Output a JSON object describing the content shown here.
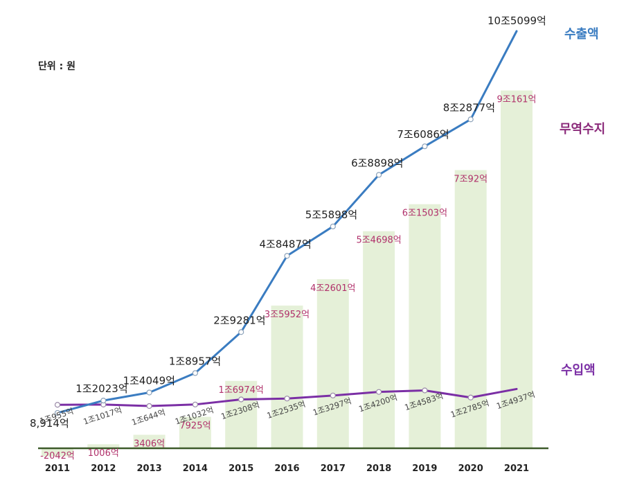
{
  "chart_data": {
    "type": "bar+line",
    "unit_label": "단위 : 원",
    "categories": [
      "2011",
      "2012",
      "2013",
      "2014",
      "2015",
      "2016",
      "2017",
      "2018",
      "2019",
      "2020",
      "2021"
    ],
    "series": [
      {
        "name": "수출액",
        "kind": "line",
        "color": "#3a7cc1",
        "values": [
          8914,
          12023,
          14049,
          18957,
          29281,
          48487,
          55898,
          68898,
          76086,
          82877,
          105099
        ],
        "labels": [
          "8,914억",
          "1조2023억",
          "1조4049억",
          "1조8957억",
          "2조9281억",
          "4조8487억",
          "5조5898억",
          "6조8898억",
          "7조6086억",
          "8조2877억",
          "10조5099억"
        ]
      },
      {
        "name": "무역수지",
        "kind": "bar",
        "color": "#e5f0d8",
        "label_color": "#b0306a",
        "values": [
          -2042,
          1006,
          3406,
          7925,
          16974,
          35952,
          42601,
          54698,
          61503,
          70092,
          90161
        ],
        "labels": [
          "-2042억",
          "1006억",
          "3406억",
          "7925억",
          "1조6974억",
          "3조5952억",
          "4조2601억",
          "5조4698억",
          "6조1503억",
          "7조92억",
          "9조161억"
        ]
      },
      {
        "name": "수입액",
        "kind": "line",
        "color": "#7b2fa5",
        "values": [
          10955,
          11017,
          10644,
          11032,
          12308,
          12535,
          13297,
          14200,
          14583,
          12785,
          14937
        ],
        "labels": [
          "1조955억",
          "1조1017억",
          "1조644억",
          "1조1032억",
          "1조2308억",
          "1조2535억",
          "1조3297억",
          "1조4200억",
          "1조4583억",
          "1조2785억",
          "1조4937억"
        ]
      }
    ],
    "legend": [
      {
        "name": "수출액",
        "color": "#3a7cc1"
      },
      {
        "name": "무역수지",
        "color": "#8b2a7a"
      },
      {
        "name": "수입액",
        "color": "#7b2fa5"
      }
    ],
    "ylim": [
      -5000,
      110000
    ],
    "axis_color": "#3d5a2a"
  }
}
